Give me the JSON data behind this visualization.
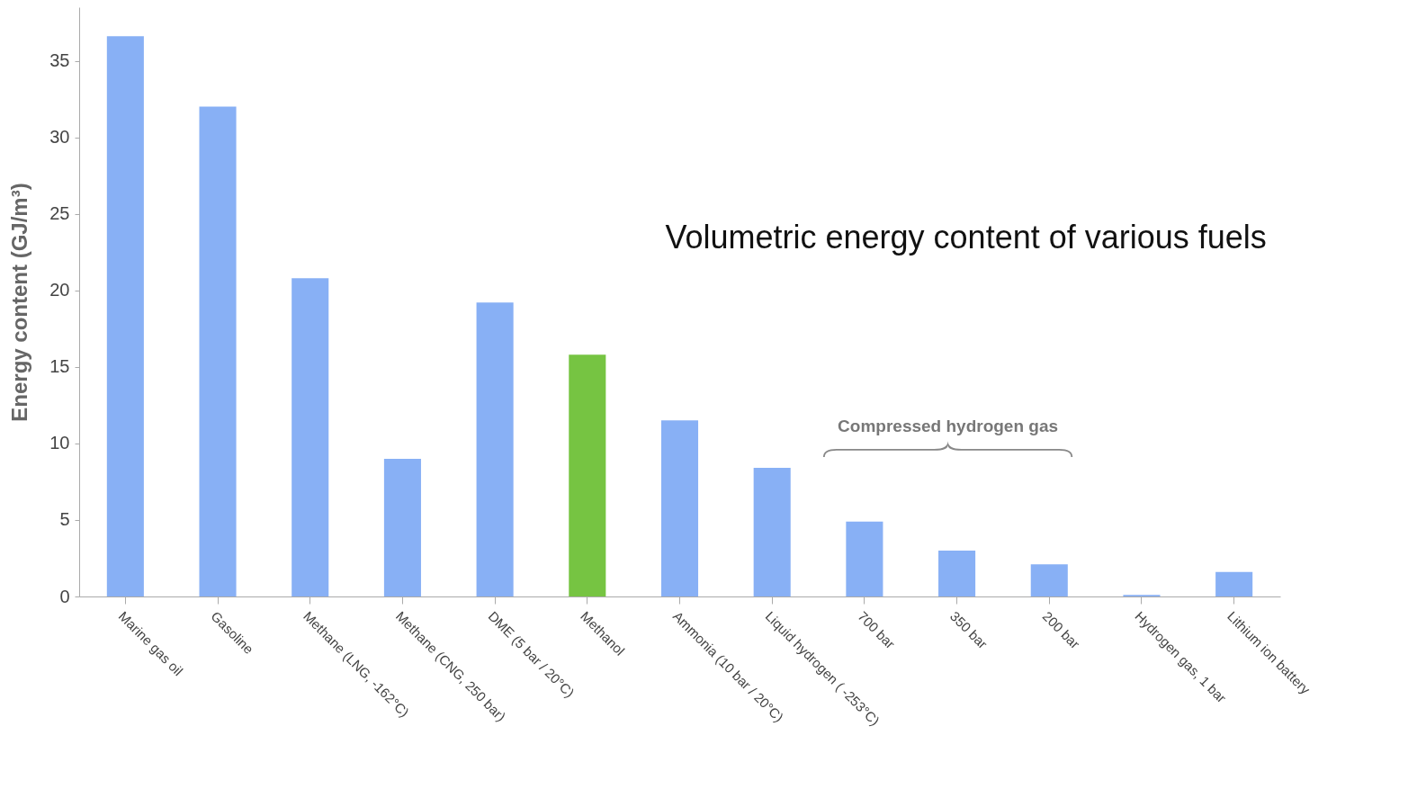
{
  "chart_data": {
    "type": "bar",
    "title": "Volumetric energy content of various fuels",
    "ylabel": "Energy content (GJ/m³)",
    "categories": [
      "Marine gas oil",
      "Gasoline",
      "Methane (LNG, -162°C)",
      "Methane (CNG, 250 bar)",
      "DME  (5 bar / 20°C)",
      "Methanol",
      "Ammonia (10 bar / 20°C)",
      "Liquid hydrogen ( -253°C)",
      "700 bar",
      "350 bar",
      "200 bar",
      "Hydrogen gas, 1 bar",
      "Lithium ion battery"
    ],
    "values": [
      36.6,
      32.0,
      20.8,
      9.0,
      19.2,
      15.8,
      11.5,
      8.4,
      4.9,
      3.0,
      2.1,
      0.1,
      1.6
    ],
    "colors": [
      "#88b0f5",
      "#88b0f5",
      "#88b0f5",
      "#88b0f5",
      "#88b0f5",
      "#76c442",
      "#88b0f5",
      "#88b0f5",
      "#88b0f5",
      "#88b0f5",
      "#88b0f5",
      "#88b0f5",
      "#88b0f5"
    ],
    "ylim": [
      0,
      38.5
    ],
    "yticks": [
      0,
      5,
      10,
      15,
      20,
      25,
      30,
      35
    ],
    "annotations": [
      "Compressed hydrogen gas"
    ]
  }
}
